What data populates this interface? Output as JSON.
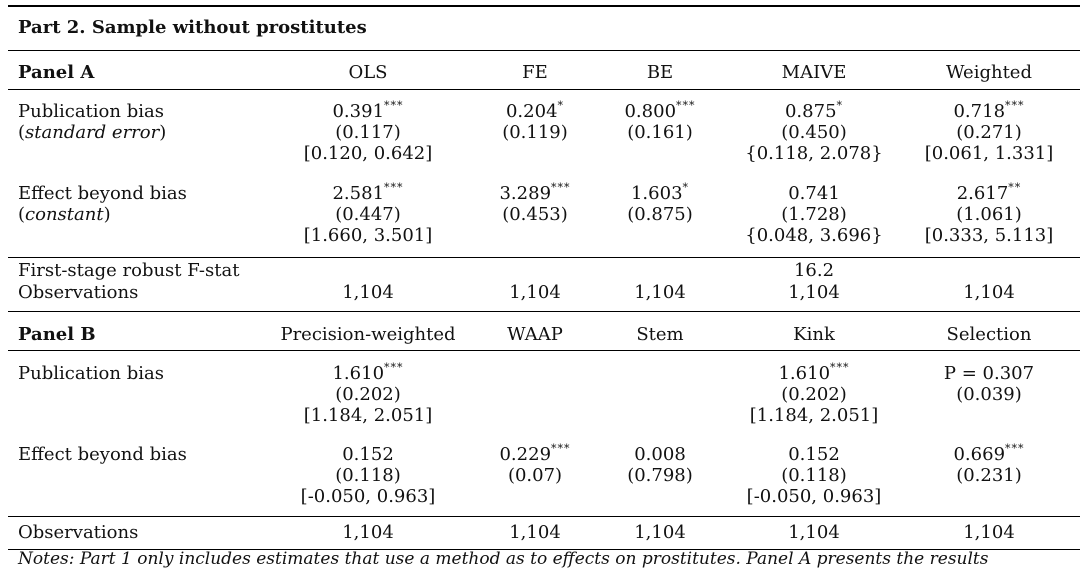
{
  "title": "Part 2. Sample without prostitutes",
  "panelA": {
    "label": "Panel A",
    "columns": [
      "OLS",
      "FE",
      "BE",
      "MAIVE",
      "Weighted"
    ],
    "pub_bias": {
      "label": "Publication bias",
      "sub": "standard error",
      "coef": [
        "0.391",
        "0.204",
        "0.800",
        "0.875",
        "0.718"
      ],
      "stars": [
        "***",
        "*",
        "***",
        "*",
        "***"
      ],
      "se": [
        "(0.117)",
        "(0.119)",
        "(0.161)",
        "(0.450)",
        "(0.271)"
      ],
      "ci": [
        "[0.120, 0.642]",
        "",
        "",
        "{0.118, 2.078}",
        "[0.061, 1.331]"
      ]
    },
    "effect": {
      "label": "Effect beyond bias",
      "sub": "constant",
      "coef": [
        "2.581",
        "3.289",
        "1.603",
        "0.741",
        "2.617"
      ],
      "stars": [
        "***",
        "***",
        "*",
        "",
        "**"
      ],
      "se": [
        "(0.447)",
        "(0.453)",
        "(0.875)",
        "(1.728)",
        "(1.061)"
      ],
      "ci": [
        "[1.660, 3.501]",
        "",
        "",
        "{0.048, 3.696}",
        "[0.333, 5.113]"
      ]
    },
    "fstat": {
      "label": "First-stage robust F-stat",
      "maive": "16.2"
    },
    "obs": {
      "label": "Observations",
      "values": [
        "1,104",
        "1,104",
        "1,104",
        "1,104",
        "1,104"
      ]
    }
  },
  "panelB": {
    "label": "Panel B",
    "columns": [
      "Precision-weighted",
      "WAAP",
      "Stem",
      "Kink",
      "Selection"
    ],
    "pub_bias": {
      "label": "Publication bias",
      "coef": [
        "1.610",
        "",
        "",
        "1.610",
        "P = 0.307"
      ],
      "stars": [
        "***",
        "",
        "",
        "***",
        ""
      ],
      "se": [
        "(0.202)",
        "",
        "",
        "(0.202)",
        "(0.039)"
      ],
      "ci": [
        "[1.184, 2.051]",
        "",
        "",
        "[1.184, 2.051]",
        ""
      ]
    },
    "effect": {
      "label": "Effect beyond bias",
      "coef": [
        "0.152",
        "0.229",
        "0.008",
        "0.152",
        "0.669"
      ],
      "stars": [
        "",
        "***",
        "",
        "",
        "***"
      ],
      "se": [
        "(0.118)",
        "(0.07)",
        "(0.798)",
        "(0.118)",
        "(0.231)"
      ],
      "ci": [
        "[-0.050, 0.963]",
        "",
        "",
        "[-0.050, 0.963]",
        ""
      ]
    },
    "obs": {
      "label": "Observations",
      "values": [
        "1,104",
        "1,104",
        "1,104",
        "1,104",
        "1,104"
      ]
    }
  },
  "note": "Notes: Part 1 only includes estimates that use a method as to effects on prostitutes. Panel A presents the results"
}
